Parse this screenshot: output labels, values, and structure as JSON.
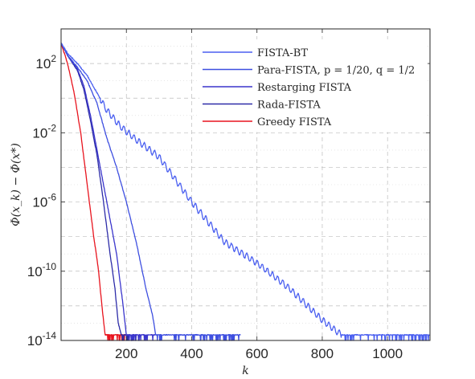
{
  "chart_data": {
    "type": "line",
    "title": "",
    "xlabel": "k",
    "ylabel": "Φ(x_k) − Φ(x*)",
    "x_scale": "linear",
    "y_scale": "log",
    "xlim": [
      0,
      1130
    ],
    "ylim": [
      1e-14,
      10000.0
    ],
    "x_ticks": [
      200,
      400,
      600,
      800,
      1000
    ],
    "y_ticks": [
      {
        "base": "10",
        "exp": "2",
        "value": 100
      },
      {
        "base": "10",
        "exp": "-2",
        "value": 0.01
      },
      {
        "base": "10",
        "exp": "-6",
        "value": 1e-06
      },
      {
        "base": "10",
        "exp": "-10",
        "value": 1e-10
      },
      {
        "base": "10",
        "exp": "-14",
        "value": 1e-14
      }
    ],
    "grid": true,
    "legend_position": "top-right",
    "series": [
      {
        "name": "FISTA-BT",
        "color": "#4a5ff0",
        "oscillating": true,
        "x": [
          0,
          20,
          50,
          80,
          110,
          140,
          180,
          230,
          300,
          400,
          500,
          600,
          700,
          800,
          860,
          900,
          1130
        ],
        "y": [
          1500,
          400,
          100,
          20,
          2,
          0.2,
          0.025,
          0.004,
          0.0004,
          1e-06,
          5e-09,
          3e-10,
          1e-11,
          1.5e-13,
          2e-14,
          2e-14,
          2e-14
        ]
      },
      {
        "name": "Para-FISTA, p = 1/20, q = 1/2",
        "color": "#3e4fe0",
        "x": [
          0,
          20,
          50,
          80,
          110,
          140,
          170,
          200,
          230,
          260,
          280,
          290,
          550
        ],
        "y": [
          1500,
          300,
          60,
          10,
          0.5,
          0.005,
          0.0001,
          1e-06,
          5e-09,
          1e-11,
          3e-13,
          2e-14,
          2e-14
        ]
      },
      {
        "name": "Restarging FISTA",
        "color": "#3a35cc",
        "x": [
          0,
          20,
          50,
          70,
          90,
          110,
          130,
          150,
          170,
          190,
          200,
          290
        ],
        "y": [
          1500,
          300,
          50,
          5,
          0.1,
          0.001,
          1e-05,
          1e-07,
          1e-09,
          1e-12,
          2e-14,
          2e-14
        ]
      },
      {
        "name": "Rada-FISTA",
        "color": "#2d2ca8",
        "x": [
          0,
          20,
          50,
          70,
          90,
          110,
          130,
          150,
          165,
          175,
          185,
          230
        ],
        "y": [
          1500,
          300,
          40,
          3,
          0.05,
          0.0005,
          1e-06,
          1e-09,
          1e-11,
          1e-13,
          2e-14,
          2e-14
        ]
      },
      {
        "name": "Greedy FISTA",
        "color": "#e8141e",
        "x": [
          0,
          20,
          40,
          60,
          80,
          100,
          115,
          125,
          135,
          145,
          200
        ],
        "y": [
          1500,
          100,
          2,
          0.01,
          1e-05,
          1e-08,
          1e-10,
          1e-12,
          2e-14,
          2e-14,
          2e-14
        ]
      }
    ]
  }
}
